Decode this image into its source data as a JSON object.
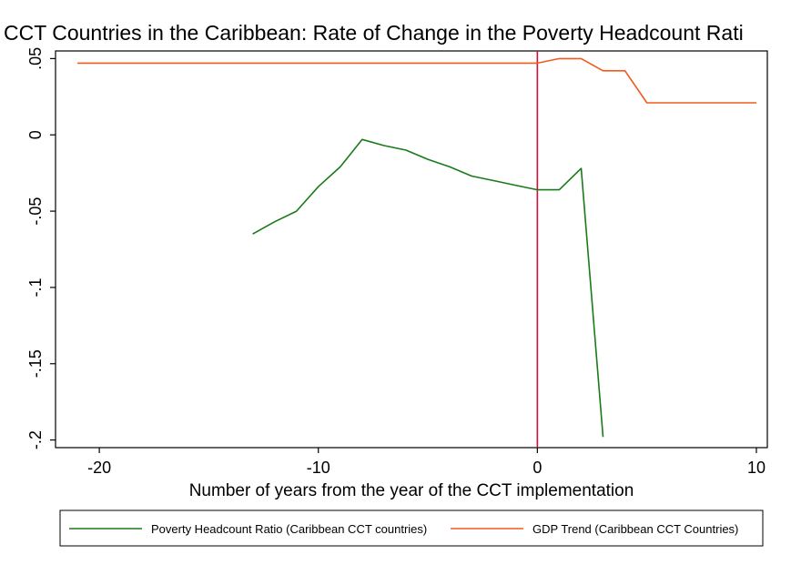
{
  "chart_data": {
    "type": "line",
    "title": "CCT Countries in the Caribbean: Rate of Change in the Poverty Headcount Rati",
    "xlabel": "Number of years from the year of the CCT implementation",
    "ylabel": "",
    "xlim": [
      -22,
      10.5
    ],
    "ylim": [
      -0.205,
      0.055
    ],
    "xticks": [
      -20,
      -10,
      0,
      10
    ],
    "xtick_labels": [
      "-20",
      "-10",
      "0",
      "10"
    ],
    "yticks": [
      0.05,
      0,
      -0.05,
      -0.1,
      -0.15,
      -0.2
    ],
    "ytick_labels": [
      ".05",
      "0",
      "-.05",
      "-.1",
      "-.15",
      "-.2"
    ],
    "grid": false,
    "legend_position": "bottom",
    "reference_line": {
      "x": 0,
      "color": "#d0103a"
    },
    "series": [
      {
        "name": "Poverty Headcount Ratio (Caribbean CCT countries)",
        "color": "#1a7a1a",
        "x": [
          -13,
          -12,
          -11,
          -10,
          -9,
          -8,
          -7,
          -6,
          -5,
          -4,
          -3,
          -2,
          -1,
          0,
          1,
          2,
          3
        ],
        "y": [
          -0.065,
          -0.057,
          -0.05,
          -0.034,
          -0.021,
          -0.003,
          -0.007,
          -0.01,
          -0.016,
          -0.021,
          -0.027,
          -0.03,
          -0.033,
          -0.036,
          -0.036,
          -0.022,
          -0.198
        ]
      },
      {
        "name": "GDP Trend (Caribbean CCT Countries)",
        "color": "#f05a1e",
        "x": [
          -21,
          -20,
          -19,
          -18,
          -17,
          -16,
          -15,
          -14,
          -13,
          -12,
          -11,
          -10,
          -9,
          -8,
          -7,
          -6,
          -5,
          -4,
          -3,
          -2,
          -1,
          0,
          1,
          2,
          3,
          4,
          5,
          6,
          7,
          8,
          9,
          10
        ],
        "y": [
          0.047,
          0.047,
          0.047,
          0.047,
          0.047,
          0.047,
          0.047,
          0.047,
          0.047,
          0.047,
          0.047,
          0.047,
          0.047,
          0.047,
          0.047,
          0.047,
          0.047,
          0.047,
          0.047,
          0.047,
          0.047,
          0.047,
          0.05,
          0.05,
          0.042,
          0.042,
          0.021,
          0.021,
          0.021,
          0.021,
          0.021,
          0.021
        ]
      }
    ]
  }
}
